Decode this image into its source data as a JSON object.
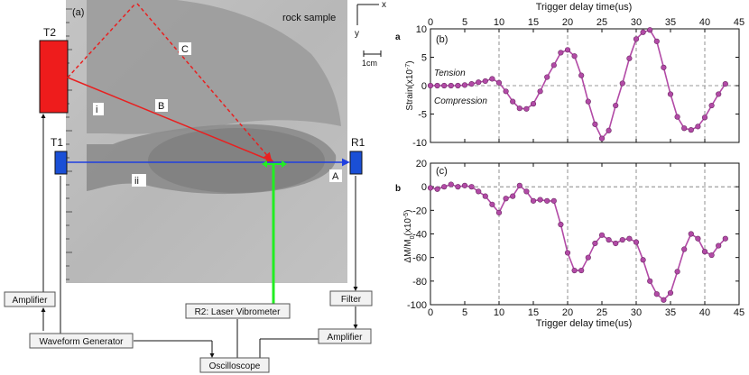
{
  "panel_a": {
    "panel_label": "(a)",
    "sample_label": "rock sample",
    "axis_x": "x",
    "axis_y": "y",
    "scale_label": "1cm",
    "transducer_t2": "T2",
    "transducer_t1": "T1",
    "receiver_r1": "R1",
    "path_a": "A",
    "path_b": "B",
    "path_c": "C",
    "region_i": "i",
    "region_ii": "ii",
    "boxes": {
      "amplifier_left": "Amplifier",
      "waveform_generator": "Waveform Generator",
      "laser_vibrometer": "R2: Laser Vibrometer",
      "filter": "Filter",
      "amplifier_right": "Amplifier",
      "oscilloscope": "Oscilloscope"
    },
    "colors": {
      "t2": "#ee1c1c",
      "t1_r1": "#1a4fd6",
      "path_a": "#1f3fe0",
      "path_b_c": "#e82020",
      "laser": "#22ee22"
    }
  },
  "chart_data": [
    {
      "type": "line",
      "panel_label": "(b)",
      "figure_tag": "a",
      "xlabel": "Trigger delay time(us)",
      "xlabel_position": "top",
      "ylabel": "Strain(x10",
      "ylabel_exp": "-7",
      "ylabel_close": ")",
      "xlim": [
        0,
        45
      ],
      "ylim": [
        -10,
        10
      ],
      "xticks": [
        0,
        5,
        10,
        15,
        20,
        25,
        30,
        35,
        40,
        45
      ],
      "yticks": [
        -10,
        -5,
        0,
        5,
        10
      ],
      "dashed_x": [
        10,
        20,
        30,
        40
      ],
      "annotations": [
        "Tension",
        "Compression"
      ],
      "color": "#b24aa6",
      "series": [
        {
          "x": [
            0,
            1,
            2,
            3,
            4,
            5,
            6,
            7,
            8,
            9,
            10,
            11,
            12,
            13,
            14,
            15,
            16,
            17,
            18,
            19,
            20,
            21,
            22,
            23,
            24,
            25,
            26,
            27,
            28,
            29,
            30,
            31,
            32,
            33,
            34,
            35,
            36,
            37,
            38,
            39,
            40,
            41,
            42,
            43
          ],
          "values": [
            0,
            0,
            0,
            0,
            0,
            0.1,
            0.3,
            0.6,
            0.8,
            1.2,
            0.5,
            -1.0,
            -2.8,
            -4.0,
            -4.1,
            -3.2,
            -1.0,
            1.5,
            3.6,
            5.8,
            6.3,
            5.2,
            1.8,
            -2.8,
            -6.8,
            -9.3,
            -7.9,
            -3.5,
            0.4,
            4.8,
            8.2,
            9.4,
            9.8,
            7.8,
            3.2,
            -1.5,
            -5.5,
            -7.5,
            -7.8,
            -7.2,
            -5.6,
            -3.5,
            -1.5,
            0.3
          ]
        }
      ]
    },
    {
      "type": "line",
      "panel_label": "(c)",
      "figure_tag": "b",
      "xlabel": "Trigger delay time(us)",
      "xlabel_position": "bottom",
      "ylabel": "ΔM/M",
      "ylabel_sub": "0",
      "ylabel_unit": "(x10",
      "ylabel_exp": "-5",
      "ylabel_close": ")",
      "xlim": [
        0,
        45
      ],
      "ylim": [
        -100,
        20
      ],
      "xticks": [
        0,
        5,
        10,
        15,
        20,
        25,
        30,
        35,
        40,
        45
      ],
      "yticks": [
        -100,
        -80,
        -60,
        -40,
        -20,
        0,
        20
      ],
      "dashed_x": [
        10,
        20,
        30,
        40
      ],
      "color": "#b24aa6",
      "series": [
        {
          "x": [
            0,
            1,
            2,
            3,
            4,
            5,
            6,
            7,
            8,
            9,
            10,
            11,
            12,
            13,
            14,
            15,
            16,
            17,
            18,
            19,
            20,
            21,
            22,
            23,
            24,
            25,
            26,
            27,
            28,
            29,
            30,
            31,
            32,
            33,
            34,
            35,
            36,
            37,
            38,
            39,
            40,
            41,
            42,
            43
          ],
          "values": [
            -1,
            -2,
            0,
            2,
            0,
            1,
            0,
            -4,
            -8,
            -15,
            -22,
            -10,
            -8,
            1,
            -4,
            -12,
            -11,
            -12,
            -12,
            -32,
            -56,
            -71,
            -71,
            -60,
            -48,
            -41,
            -45,
            -48,
            -45,
            -44,
            -47,
            -62,
            -80,
            -91,
            -96,
            -90,
            -72,
            -53,
            -40,
            -44,
            -55,
            -58,
            -50,
            -44
          ]
        }
      ]
    }
  ]
}
